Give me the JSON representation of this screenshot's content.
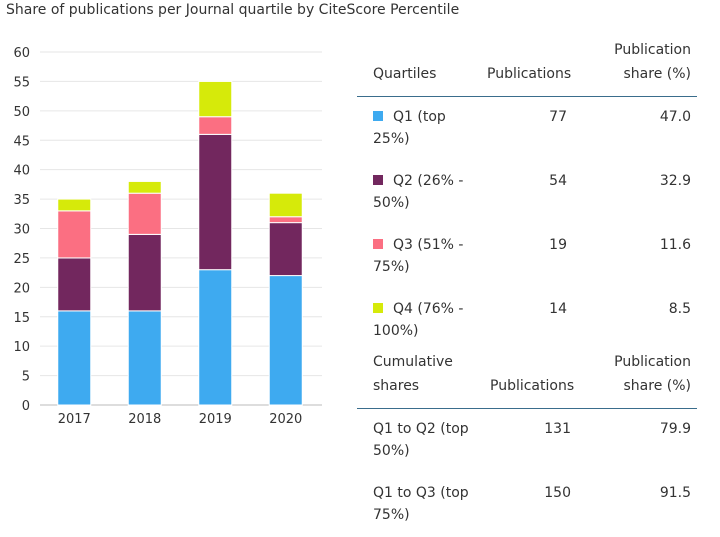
{
  "title": "Share of publications per Journal quartile by CiteScore Percentile",
  "chart_data": {
    "type": "bar",
    "stacked": true,
    "categories": [
      "2017",
      "2018",
      "2019",
      "2020"
    ],
    "series": [
      {
        "name": "Q1 (top 25%)",
        "color": "#3eaaf0",
        "values": [
          16,
          16,
          23,
          22
        ]
      },
      {
        "name": "Q2 (26% - 50%)",
        "color": "#72275e",
        "values": [
          9,
          13,
          23,
          9
        ]
      },
      {
        "name": "Q3 (51% - 75%)",
        "color": "#fb6f82",
        "values": [
          8,
          7,
          3,
          1
        ]
      },
      {
        "name": "Q4 (76% - 100%)",
        "color": "#d6ea0a",
        "values": [
          2,
          2,
          6,
          4
        ]
      }
    ],
    "ylim": [
      0,
      60
    ],
    "yticks": [
      "0",
      "5",
      "10",
      "15",
      "20",
      "25",
      "30",
      "35",
      "40",
      "45",
      "50",
      "55",
      "60"
    ],
    "grid": true
  },
  "table": {
    "header": {
      "col1": "Quartiles",
      "col2": "Publications",
      "col3_line1": "Publication",
      "col3_line2": "share (%)"
    },
    "rows": [
      {
        "label_line1": "Q1 (top",
        "label_line2": "25%)",
        "publications": "77",
        "share": "47.0",
        "color": "#3eaaf0"
      },
      {
        "label_line1": "Q2 (26% -",
        "label_line2": "50%)",
        "publications": "54",
        "share": "32.9",
        "color": "#72275e"
      },
      {
        "label_line1": "Q3 (51% -",
        "label_line2": "75%)",
        "publications": "19",
        "share": "11.6",
        "color": "#fb6f82"
      },
      {
        "label_line1": "Q4 (76% -",
        "label_line2": "100%)",
        "publications": "14",
        "share": "8.5",
        "color": "#d6ea0a"
      }
    ],
    "cumulative_header": {
      "col1_line1": "Cumulative",
      "col1_line2": "shares",
      "col2": "Publications",
      "col3_line1": "Publication",
      "col3_line2": "share (%)"
    },
    "cumulative_rows": [
      {
        "label_line1": "Q1 to Q2 (top",
        "label_line2": "50%)",
        "publications": "131",
        "share": "79.9"
      },
      {
        "label_line1": "Q1 to Q3 (top",
        "label_line2": "75%)",
        "publications": "150",
        "share": "91.5"
      }
    ]
  }
}
